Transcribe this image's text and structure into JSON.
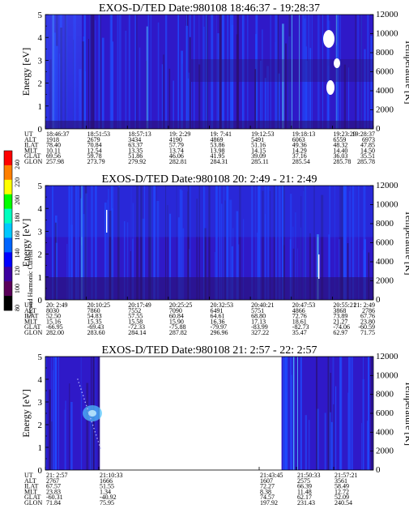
{
  "colorbar": {
    "label": "Second Harmonic Current",
    "ticks": [
      "240",
      "220",
      "200",
      "180",
      "160",
      "140",
      "120",
      "100",
      "80"
    ],
    "colors": [
      "#ff0000",
      "#ff7f00",
      "#ffff00",
      "#00ff00",
      "#00ffbf",
      "#00c8ff",
      "#0064ff",
      "#0000ff",
      "#3c00a0",
      "#5a005a",
      "#000000"
    ]
  },
  "panel_colors": {
    "background": "#2f19c8",
    "bright": "#1f4cff",
    "dark": "#2a1070",
    "cyan": "#50c8ff"
  },
  "chart_data": [
    {
      "type": "heatmap",
      "title": "EXOS-D/TED    Date:980108  18:46:37 - 19:28:37",
      "ylabel": "Energy [eV]",
      "y2label": "Temperature [K]",
      "ylim": [
        0,
        5
      ],
      "y2lim": [
        0,
        12000
      ],
      "yticks": [
        "0",
        "1",
        "2",
        "3",
        "4",
        "5"
      ],
      "y2ticks": [
        "0",
        "2000",
        "4000",
        "6000",
        "8000",
        "10000",
        "12000"
      ],
      "row_labels": [
        "UT",
        "ALT",
        "ILAT",
        "MLT",
        "GLAT",
        "GLON"
      ],
      "columns": [
        [
          "18:46:37",
          "1918",
          "78.40",
          "10.11",
          "69.56",
          "257.98"
        ],
        [
          "18:51:53",
          "2679",
          "70.84",
          "12.54",
          "59.78",
          "273.79"
        ],
        [
          "18:57:13",
          "3434",
          "63.37",
          "13.35",
          "51.86",
          "279.92"
        ],
        [
          "19: 2:29",
          "4190",
          "57.79",
          "13.74",
          "46.06",
          "282.81"
        ],
        [
          "19: 7:41",
          "4869",
          "53.86",
          "13.98",
          "41.95",
          "284.31"
        ],
        [
          "19:12:53",
          "5491",
          "51.16",
          "14.15",
          "39.09",
          "285.11"
        ],
        [
          "19:18:13",
          "6063",
          "49.36",
          "14.29",
          "37.16",
          "285.54"
        ],
        [
          "19:23:29",
          "6559",
          "48.32",
          "14.40",
          "36.03",
          "285.78"
        ],
        [
          "19:28:37",
          "6973",
          "47.85",
          "14.50",
          "35.51",
          "285.78"
        ]
      ],
      "data_span": [
        0,
        1
      ],
      "gaps": []
    },
    {
      "type": "heatmap",
      "title": "EXOS-D/TED    Date:980108  20: 2:49 - 21: 2:49",
      "ylabel": "Energy [eV]",
      "y2label": "Temperature [K]",
      "ylim": [
        0,
        5
      ],
      "y2lim": [
        0,
        12000
      ],
      "yticks": [
        "0",
        "1",
        "2",
        "3",
        "4",
        "5"
      ],
      "y2ticks": [
        "0",
        "2000",
        "4000",
        "6000",
        "8000",
        "10000",
        "12000"
      ],
      "row_labels": [
        "UT",
        "ALT",
        "ILAT",
        "MLT",
        "GLAT",
        "GLON"
      ],
      "columns": [
        [
          "20: 2:49",
          "8030",
          "52.50",
          "15.16",
          "-66.95",
          "282.00"
        ],
        [
          "20:10:25",
          "7860",
          "54.83",
          "15.35",
          "-69.43",
          "283.60"
        ],
        [
          "20:17:49",
          "7552",
          "57.55",
          "15.58",
          "-72.33",
          "284.14"
        ],
        [
          "20:25:25",
          "7090",
          "60.84",
          "15.90",
          "-75.88",
          "287.82"
        ],
        [
          "20:32:53",
          "6491",
          "64.61",
          "16.36",
          "-79.97",
          "296.96"
        ],
        [
          "20:40:21",
          "5751",
          "68.80",
          "17.13",
          "-83.99",
          "327.22"
        ],
        [
          "20:47:53",
          "4866",
          "72.76",
          "18.61",
          "-82.73",
          "35.47"
        ],
        [
          "20:55:21",
          "3868",
          "73.89",
          "21.27",
          "-74.06",
          "62.97"
        ],
        [
          "21: 2:49",
          "2786",
          "67.76",
          "23.80",
          "-60.59",
          "71.75"
        ]
      ],
      "data_span": [
        0,
        1
      ],
      "gaps": []
    },
    {
      "type": "heatmap",
      "title": "EXOS-D/TED    Date:980108  21: 2:57 - 22: 2:57",
      "ylabel": "Energy [eV]",
      "y2label": "Temperature [K]",
      "ylim": [
        0,
        5
      ],
      "y2lim": [
        0,
        12000
      ],
      "yticks": [
        "0",
        "1",
        "2",
        "3",
        "4",
        "5"
      ],
      "y2ticks": [
        "0",
        "2000",
        "4000",
        "6000",
        "8000",
        "10000",
        "12000"
      ],
      "row_labels": [
        "UT",
        "ALT",
        "ILAT",
        "MLT",
        "GLAT",
        "GLON"
      ],
      "columns": [
        [
          "21: 2:57",
          "2767",
          "67.57",
          "23.83",
          "-60.31",
          "71.84"
        ],
        [
          "21:10:33",
          "1666",
          "51.55",
          "1.34",
          "-40.92",
          "75.95"
        ],
        [
          "21:43:45",
          "1607",
          "72.27",
          "8.38",
          "74.57",
          "197.92"
        ],
        [
          "21:50:33",
          "2575",
          "66.39",
          "11.48",
          "62.17",
          "231.43"
        ],
        [
          "21:57:21",
          "3561",
          "58.49",
          "12.72",
          "52.09",
          "240.54"
        ]
      ],
      "data_span": [
        0,
        1
      ],
      "gaps": [
        [
          0.166,
          0.72
        ]
      ]
    }
  ]
}
